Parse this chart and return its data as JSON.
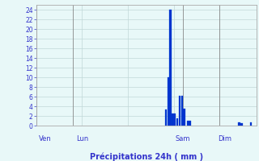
{
  "title": "Précipitations 24h ( mm )",
  "bar_color": "#0033cc",
  "bar_edge_color": "#0044dd",
  "background_color": "#e8f8f8",
  "grid_color": "#c0d8d8",
  "text_color": "#3333cc",
  "vline_color": "#888888",
  "ylim": [
    0,
    25
  ],
  "yticks": [
    0,
    2,
    4,
    6,
    8,
    10,
    12,
    14,
    16,
    18,
    20,
    22,
    24
  ],
  "xlim": [
    0,
    96
  ],
  "day_vlines": [
    0,
    16,
    64,
    80
  ],
  "x_day_labels": [
    {
      "label": "Ven",
      "x": 4
    },
    {
      "label": "Lun",
      "x": 20
    },
    {
      "label": "Sam",
      "x": 64
    },
    {
      "label": "Dim",
      "x": 82
    }
  ],
  "bars": [
    {
      "x": 56.5,
      "height": 3.3
    },
    {
      "x": 57.5,
      "height": 10.0
    },
    {
      "x": 58.5,
      "height": 24.0
    },
    {
      "x": 59.5,
      "height": 2.5
    },
    {
      "x": 60.5,
      "height": 2.5
    },
    {
      "x": 61.5,
      "height": 1.5
    },
    {
      "x": 62.5,
      "height": 6.2
    },
    {
      "x": 63.5,
      "height": 6.2
    },
    {
      "x": 64.5,
      "height": 3.5
    },
    {
      "x": 66.0,
      "height": 1.0
    },
    {
      "x": 67.0,
      "height": 1.0
    },
    {
      "x": 88.5,
      "height": 0.6
    },
    {
      "x": 89.5,
      "height": 0.5
    },
    {
      "x": 93.5,
      "height": 0.7
    }
  ],
  "figsize": [
    3.2,
    2.0
  ],
  "dpi": 100
}
